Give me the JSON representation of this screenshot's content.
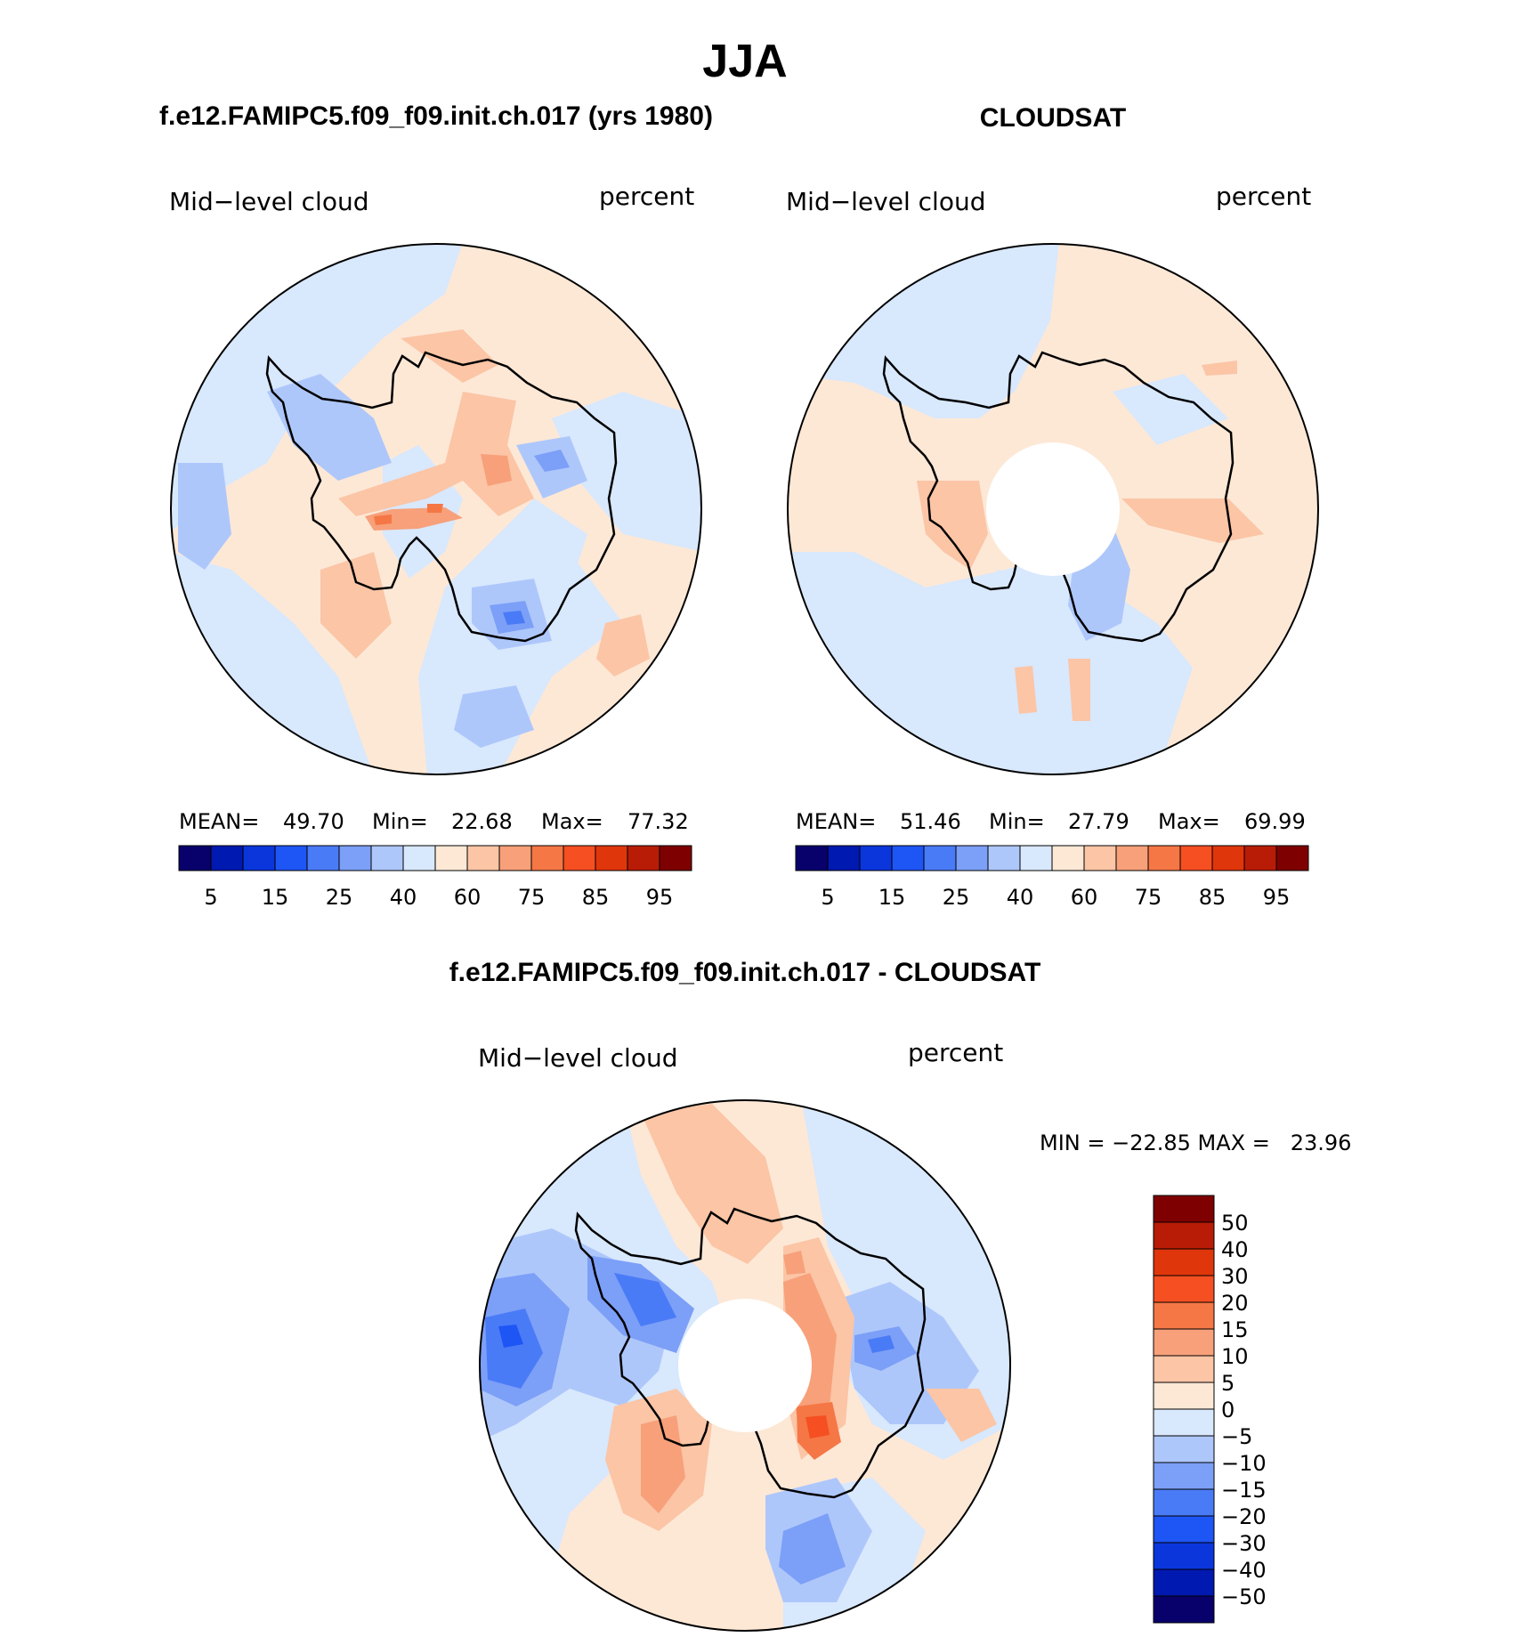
{
  "figure": {
    "title": "JJA",
    "colors": {
      "sequential": [
        "#08006b",
        "#0019b0",
        "#0a36db",
        "#1e55f5",
        "#4a7bf7",
        "#7c9ff7",
        "#aec7fb",
        "#d8e8fd",
        "#fde8d6",
        "#fbc5a6",
        "#f7a07a",
        "#f57745",
        "#f54f22",
        "#e0360c",
        "#b81c06",
        "#7f0000"
      ],
      "diverging": [
        "#08006b",
        "#0019b0",
        "#0a36db",
        "#1e55f5",
        "#4a7bf7",
        "#7c9ff7",
        "#aec7fb",
        "#d8e8fd",
        "#fde8d6",
        "#fbc5a6",
        "#f7a07a",
        "#f57745",
        "#f54f22",
        "#e0360c",
        "#b81c06",
        "#7f0000"
      ]
    },
    "panels": [
      {
        "id": "model",
        "heading": "f.e12.FAMIPC5.f09_f09.init.ch.017 (yrs 1980)",
        "variable": "Mid−level cloud",
        "units": "percent",
        "stats": {
          "mean_label": "MEAN=",
          "mean": "49.70",
          "min_label": "Min=",
          "min": "22.68",
          "max_label": "Max=",
          "max": "77.32"
        },
        "colorbar_ticks": [
          "5",
          "15",
          "25",
          "40",
          "60",
          "75",
          "85",
          "95"
        ],
        "pole_hole": false
      },
      {
        "id": "obs",
        "heading": "CLOUDSAT",
        "variable": "Mid−level cloud",
        "units": "percent",
        "stats": {
          "mean_label": "MEAN=",
          "mean": "51.46",
          "min_label": "Min=",
          "min": "27.79",
          "max_label": "Max=",
          "max": "69.99"
        },
        "colorbar_ticks": [
          "5",
          "15",
          "25",
          "40",
          "60",
          "75",
          "85",
          "95"
        ],
        "pole_hole": true
      },
      {
        "id": "diff",
        "heading": "f.e12.FAMIPC5.f09_f09.init.ch.017 - CLOUDSAT",
        "variable": "Mid−level cloud",
        "units": "percent",
        "stats_text": "MIN = −22.85 MAX =   23.96",
        "colorbar_ticks": [
          "50",
          "40",
          "30",
          "20",
          "15",
          "10",
          "5",
          "0",
          "−5",
          "−10",
          "−15",
          "−20",
          "−30",
          "−40",
          "−50"
        ],
        "pole_hole": true
      }
    ]
  }
}
